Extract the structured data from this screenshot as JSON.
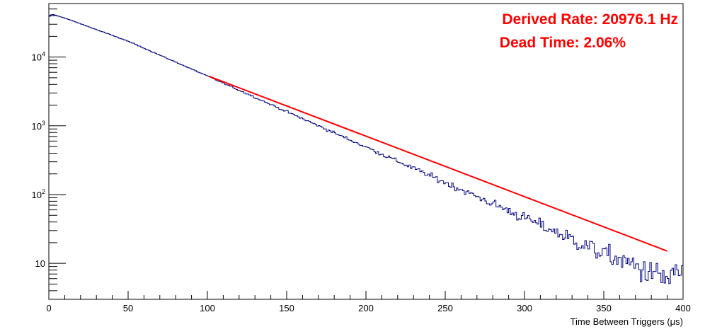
{
  "chart_data": {
    "type": "histogram",
    "title": "",
    "xlabel": "Time Between Triggers (μs)",
    "ylabel": "",
    "xlim": [
      0,
      400
    ],
    "ylim": [
      3,
      60000
    ],
    "y_scale": "log",
    "grid": false,
    "x_ticks": [
      0,
      50,
      100,
      150,
      200,
      250,
      300,
      350,
      400
    ],
    "x_tick_labels": [
      "0",
      "50",
      "100",
      "150",
      "200",
      "250",
      "300",
      "350",
      "400"
    ],
    "y_ticks": [
      10,
      100,
      1000,
      10000
    ],
    "y_tick_labels": [
      {
        "base": "10",
        "exp": ""
      },
      {
        "base": "10",
        "exp": "2"
      },
      {
        "base": "10",
        "exp": "3"
      },
      {
        "base": "10",
        "exp": "4"
      }
    ],
    "histogram": {
      "name": "",
      "color": "#000080",
      "bin_width": 1,
      "points": [
        [
          0,
          38000
        ],
        [
          2,
          42000
        ],
        [
          5,
          40000
        ],
        [
          10,
          37000
        ],
        [
          50,
          17000
        ],
        [
          100,
          5300
        ],
        [
          150,
          1610
        ],
        [
          200,
          492
        ],
        [
          250,
          150
        ],
        [
          300,
          46
        ],
        [
          350,
          14
        ],
        [
          390,
          6
        ],
        [
          400,
          8
        ]
      ]
    },
    "fit": {
      "name": "",
      "color": "#ff0000",
      "x_range": [
        101,
        390
      ],
      "y_at_start": 5250,
      "y_at_end": 15.1
    },
    "annotations": [
      {
        "text": "Derived Rate: 20976.1 Hz",
        "color": "#ff0000"
      },
      {
        "text": "Dead Time: 2.06%",
        "color": "#ff0000"
      }
    ]
  }
}
